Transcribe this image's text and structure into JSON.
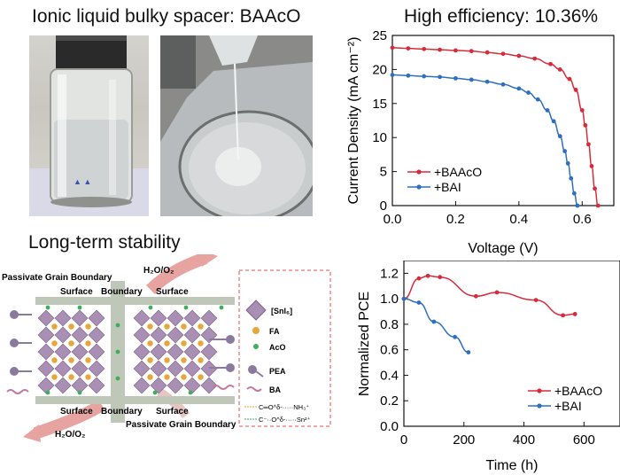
{
  "panels": {
    "top_left_title": "Ionic liquid bulky spacer: BAAcO",
    "bottom_left_title": "Long-term stability",
    "top_right_title": "High efficiency: 10.36%"
  },
  "schematic": {
    "passivate_top": "Passivate Grain Boundary",
    "passivate_bottom": "Passivate Grain Boundary",
    "gas_top": "H₂O/O₂",
    "gas_bottom": "H₂O/O₂",
    "surface_tl": "Surface",
    "boundary_top": "Boundary",
    "surface_tr": "Surface",
    "surface_bl": "Surface",
    "boundary_bottom": "Boundary",
    "surface_br": "Surface",
    "legend": {
      "sni6": "[SnI₆]",
      "fa": "FA",
      "aco": "AcO",
      "pea": "PEA",
      "ba": "BA",
      "hbond1": "C═O^δ-·····NH₃⁺",
      "hbond2": "C⁻··O^δ-·····Sn²⁺"
    },
    "colors": {
      "octahedron": "#a98fb4",
      "fa": "#e8a63a",
      "aco": "#3fae5b",
      "pea": "#8b7a9e",
      "ba": "#c27ba0",
      "bar": "#bfc8b8",
      "arrow": "#e7a3a0",
      "dashed_border": "#d9534f"
    }
  },
  "chart_data": [
    {
      "type": "line",
      "xlabel": "Voltage (V)",
      "ylabel": "Current Density (mA cm⁻²)",
      "xlim": [
        0,
        0.7
      ],
      "ylim": [
        0,
        25
      ],
      "xticks": [
        "0.0",
        "0.2",
        "0.4",
        "0.6"
      ],
      "xtick_values": [
        0,
        0.2,
        0.4,
        0.6
      ],
      "yticks": [
        "0",
        "5",
        "10",
        "15",
        "20",
        "25"
      ],
      "ytick_values": [
        0,
        5,
        10,
        15,
        20,
        25
      ],
      "legend_position": "center-left",
      "grid": false,
      "series": [
        {
          "name": "+BAAcO",
          "color": "#d62b3b",
          "x": [
            0,
            0.05,
            0.1,
            0.15,
            0.2,
            0.25,
            0.3,
            0.35,
            0.4,
            0.45,
            0.5,
            0.53,
            0.56,
            0.58,
            0.6,
            0.61,
            0.62,
            0.63,
            0.64,
            0.65
          ],
          "y": [
            23.2,
            23.1,
            23.0,
            22.9,
            22.8,
            22.7,
            22.5,
            22.3,
            22.0,
            21.6,
            20.8,
            20.0,
            18.6,
            17.0,
            14.0,
            11.8,
            9.0,
            5.8,
            2.5,
            0
          ]
        },
        {
          "name": "+BAI",
          "color": "#2f6fbf",
          "x": [
            0,
            0.05,
            0.1,
            0.15,
            0.2,
            0.25,
            0.3,
            0.35,
            0.4,
            0.43,
            0.46,
            0.49,
            0.51,
            0.53,
            0.545,
            0.555,
            0.565,
            0.575,
            0.585
          ],
          "y": [
            19.2,
            19.1,
            19.0,
            18.9,
            18.7,
            18.5,
            18.2,
            17.8,
            17.2,
            16.6,
            15.6,
            14.0,
            12.4,
            10.2,
            8.0,
            6.2,
            4.0,
            1.8,
            0
          ]
        }
      ]
    },
    {
      "type": "line",
      "xlabel": "Time (h)",
      "ylabel": "Normalized PCE",
      "xlim": [
        0,
        720
      ],
      "ylim": [
        0,
        1.3
      ],
      "xticks": [
        "0",
        "200",
        "400",
        "600"
      ],
      "xtick_values": [
        0,
        200,
        400,
        600
      ],
      "yticks": [
        "0.0",
        "0.2",
        "0.4",
        "0.6",
        "0.8",
        "1.0",
        "1.2"
      ],
      "ytick_values": [
        0,
        0.2,
        0.4,
        0.6,
        0.8,
        1.0,
        1.2
      ],
      "legend_position": "bottom-right",
      "grid": false,
      "series": [
        {
          "name": "+BAAcO",
          "color": "#d62b3b",
          "x": [
            0,
            50,
            80,
            120,
            240,
            310,
            440,
            530,
            570
          ],
          "y": [
            1.0,
            1.16,
            1.18,
            1.17,
            1.02,
            1.05,
            0.99,
            0.87,
            0.88
          ]
        },
        {
          "name": "+BAI",
          "color": "#2f6fbf",
          "x": [
            0,
            50,
            100,
            170,
            215
          ],
          "y": [
            1.0,
            0.97,
            0.82,
            0.7,
            0.58
          ]
        }
      ]
    }
  ]
}
